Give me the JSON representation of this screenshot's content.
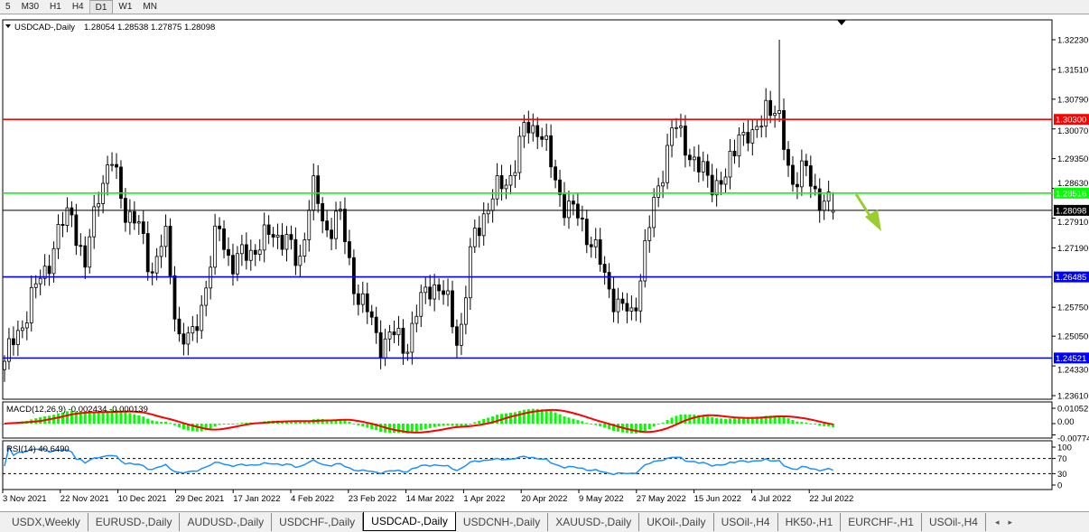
{
  "timeframes": [
    "5",
    "M30",
    "H1",
    "H4",
    "D1",
    "W1",
    "MN"
  ],
  "active_timeframe": "D1",
  "main": {
    "symbol_label": "USDCAD-,Daily",
    "ohlc": "1.28054 1.28538 1.27875 1.28098",
    "price_ticks": [
      "1.32230",
      "1.31510",
      "1.30790",
      "1.30070",
      "1.29350",
      "1.28630",
      "1.27910",
      "1.27190",
      "1.25750",
      "1.25050",
      "1.24330",
      "1.23610"
    ],
    "levels": [
      {
        "price": "1.30300",
        "color": "#ff0000"
      },
      {
        "price": "1.28516",
        "color": "#00ff00"
      },
      {
        "price": "1.28098",
        "color": "#000000"
      },
      {
        "price": "1.26485",
        "color": "#0000ff"
      },
      {
        "price": "1.24521",
        "color": "#0000ff"
      }
    ],
    "closes": [
      1.2444,
      1.251,
      1.2597,
      1.2663,
      1.275,
      1.2816,
      1.266,
      1.286,
      1.2926,
      1.2816,
      1.277,
      1.2663,
      1.275,
      1.251,
      1.2488,
      1.262,
      1.277,
      1.268,
      1.27,
      1.2729,
      1.275,
      1.275,
      1.2663,
      1.288,
      1.275,
      1.2816,
      1.264,
      1.2575,
      1.2488,
      1.251,
      1.2477,
      1.2575,
      1.264,
      1.2597,
      1.2488,
      1.2729,
      1.2816,
      1.286,
      1.2904,
      1.3013,
      1.3013,
      1.2904,
      1.2816,
      1.2794,
      1.2729,
      1.264,
      1.2575,
      1.2553,
      1.2729,
      1.288,
      1.3013,
      1.2969,
      1.2904,
      1.288,
      1.288,
      1.3013,
      1.2969,
      1.3079,
      1.3013,
      1.288,
      1.2904,
      1.2838,
      1.281
    ],
    "period_high": 1.3223,
    "trend_arrow": {
      "direction": "down",
      "color": "#9acd32"
    }
  },
  "macd": {
    "label": "MACD(12,26,9) -0.002434 -0.000139",
    "ticks": [
      "0.01052",
      "0.00",
      "-0.00774"
    ],
    "hist_color": "#00ff00",
    "signal_color": "#ff0000"
  },
  "rsi": {
    "label": "RSI(14) 40.6490",
    "ticks": [
      "100",
      "70",
      "30",
      "0"
    ],
    "color": "#1e90ff"
  },
  "dates": [
    "3 Nov 2021",
    "22 Nov 2021",
    "10 Dec 2021",
    "29 Dec 2021",
    "17 Jan 2022",
    "4 Feb 2022",
    "23 Feb 2022",
    "14 Mar 2022",
    "1 Apr 2022",
    "20 Apr 2022",
    "9 May 2022",
    "27 May 2022",
    "15 Jun 2022",
    "4 Jul 2022",
    "22 Jul 2022"
  ],
  "tabs": [
    "USDX,Weekly",
    "EURUSD-,Daily",
    "AUDUSD-,Daily",
    "USDCHF-,Daily",
    "USDCAD-,Daily",
    "USDCNH-,Daily",
    "XAUUSD-,Daily",
    "UKOil-,Daily",
    "USOil-,H4",
    "HK50-,H1",
    "EURCHF-,H1",
    "USOil-,H4"
  ],
  "active_tab": "USDCAD-,Daily"
}
